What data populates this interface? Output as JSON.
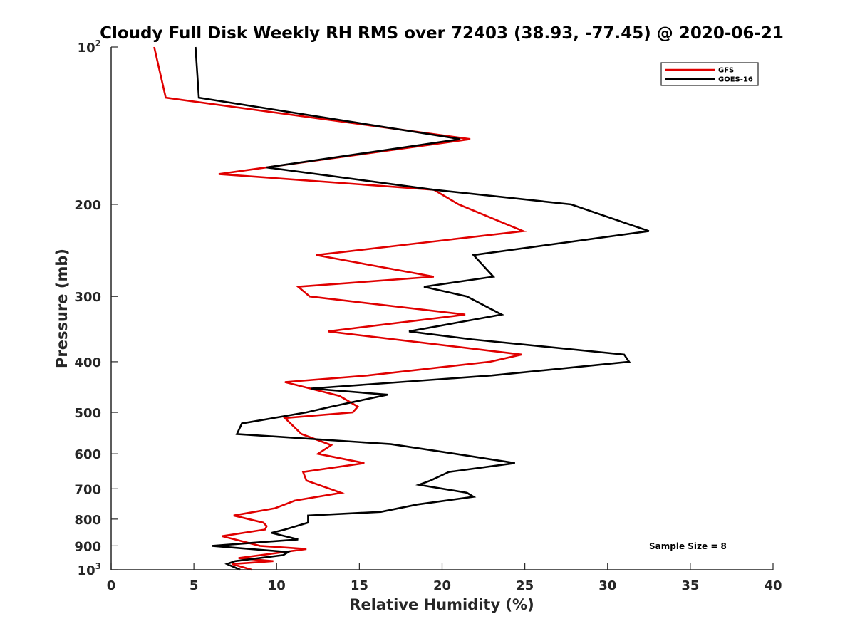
{
  "chart_data": {
    "type": "line",
    "title": "Cloudy Full Disk Weekly RH RMS over 72403 (38.93, -77.45) @ 2020-06-21",
    "xlabel": "Relative Humidity (%)",
    "ylabel": "Pressure (mb)",
    "xlim": [
      0,
      40
    ],
    "ylim": [
      100,
      1000
    ],
    "y_scale": "log",
    "y_reversed": true,
    "x_ticks": [
      0,
      5,
      10,
      15,
      20,
      25,
      30,
      35,
      40
    ],
    "x_tick_labels": [
      "0",
      "5",
      "10",
      "15",
      "20",
      "25",
      "30",
      "35",
      "40"
    ],
    "y_ticks": [
      {
        "value": 100,
        "base": "10",
        "exp": "2"
      },
      {
        "value": 200,
        "label": "200"
      },
      {
        "value": 300,
        "label": "300"
      },
      {
        "value": 400,
        "label": "400"
      },
      {
        "value": 500,
        "label": "500"
      },
      {
        "value": 600,
        "label": "600"
      },
      {
        "value": 700,
        "label": "700"
      },
      {
        "value": 800,
        "label": "800"
      },
      {
        "value": 900,
        "label": "900"
      },
      {
        "value": 1000,
        "base": "10",
        "exp": "3"
      }
    ],
    "legend": {
      "location": "top-right"
    },
    "annotation": "Sample Size = 8",
    "series": [
      {
        "name": "GFS",
        "color": "#e00000",
        "points": [
          [
            2.6,
            100
          ],
          [
            3.3,
            125
          ],
          [
            21.7,
            150
          ],
          [
            6.5,
            175
          ],
          [
            19.5,
            187.5
          ],
          [
            21.0,
            200
          ],
          [
            24.9,
            225
          ],
          [
            12.4,
            250
          ],
          [
            19.5,
            275
          ],
          [
            11.3,
            287.5
          ],
          [
            12.0,
            300
          ],
          [
            21.4,
            325
          ],
          [
            13.1,
            350
          ],
          [
            24.8,
            387.5
          ],
          [
            22.9,
            400
          ],
          [
            15.5,
            425
          ],
          [
            10.5,
            437.5
          ],
          [
            13.8,
            465
          ],
          [
            14.9,
            487.5
          ],
          [
            14.6,
            500
          ],
          [
            10.5,
            512.5
          ],
          [
            11.5,
            550
          ],
          [
            13.3,
            577.5
          ],
          [
            12.5,
            600
          ],
          [
            15.3,
            625
          ],
          [
            11.6,
            650
          ],
          [
            11.8,
            675
          ],
          [
            13.9,
            712.5
          ],
          [
            11.1,
            737.5
          ],
          [
            9.9,
            762.5
          ],
          [
            7.4,
            787.5
          ],
          [
            9.2,
            812.5
          ],
          [
            9.4,
            825
          ],
          [
            9.3,
            837.5
          ],
          [
            6.7,
            862.5
          ],
          [
            9.0,
            900
          ],
          [
            11.8,
            912.5
          ],
          [
            7.7,
            950
          ],
          [
            9.8,
            962.5
          ],
          [
            7.3,
            975
          ],
          [
            8.5,
            1000
          ]
        ]
      },
      {
        "name": "GOES-16",
        "color": "#000000",
        "points": [
          [
            5.1,
            100
          ],
          [
            5.3,
            125
          ],
          [
            21.1,
            150
          ],
          [
            9.4,
            170
          ],
          [
            19.5,
            187.5
          ],
          [
            27.8,
            200
          ],
          [
            32.5,
            225
          ],
          [
            21.9,
            250
          ],
          [
            23.1,
            275
          ],
          [
            18.9,
            287.5
          ],
          [
            21.5,
            300
          ],
          [
            23.6,
            325
          ],
          [
            18.0,
            350
          ],
          [
            21.8,
            362.5
          ],
          [
            31.0,
            387.5
          ],
          [
            31.3,
            400
          ],
          [
            23.0,
            425
          ],
          [
            12.1,
            450
          ],
          [
            16.7,
            462.5
          ],
          [
            13.3,
            487.5
          ],
          [
            11.8,
            500
          ],
          [
            7.9,
            525
          ],
          [
            7.6,
            550
          ],
          [
            16.9,
            575
          ],
          [
            20.8,
            600
          ],
          [
            24.4,
            625
          ],
          [
            20.4,
            650
          ],
          [
            19.3,
            675
          ],
          [
            18.6,
            687.5
          ],
          [
            21.5,
            712.5
          ],
          [
            21.9,
            725
          ],
          [
            18.5,
            750
          ],
          [
            16.3,
            775
          ],
          [
            11.9,
            787.5
          ],
          [
            11.9,
            812.5
          ],
          [
            10.5,
            837.5
          ],
          [
            9.7,
            850
          ],
          [
            11.3,
            875
          ],
          [
            6.1,
            900
          ],
          [
            10.7,
            925
          ],
          [
            10.4,
            937.5
          ],
          [
            7.5,
            962.5
          ],
          [
            7.0,
            975
          ],
          [
            7.8,
            1000
          ]
        ]
      }
    ]
  }
}
